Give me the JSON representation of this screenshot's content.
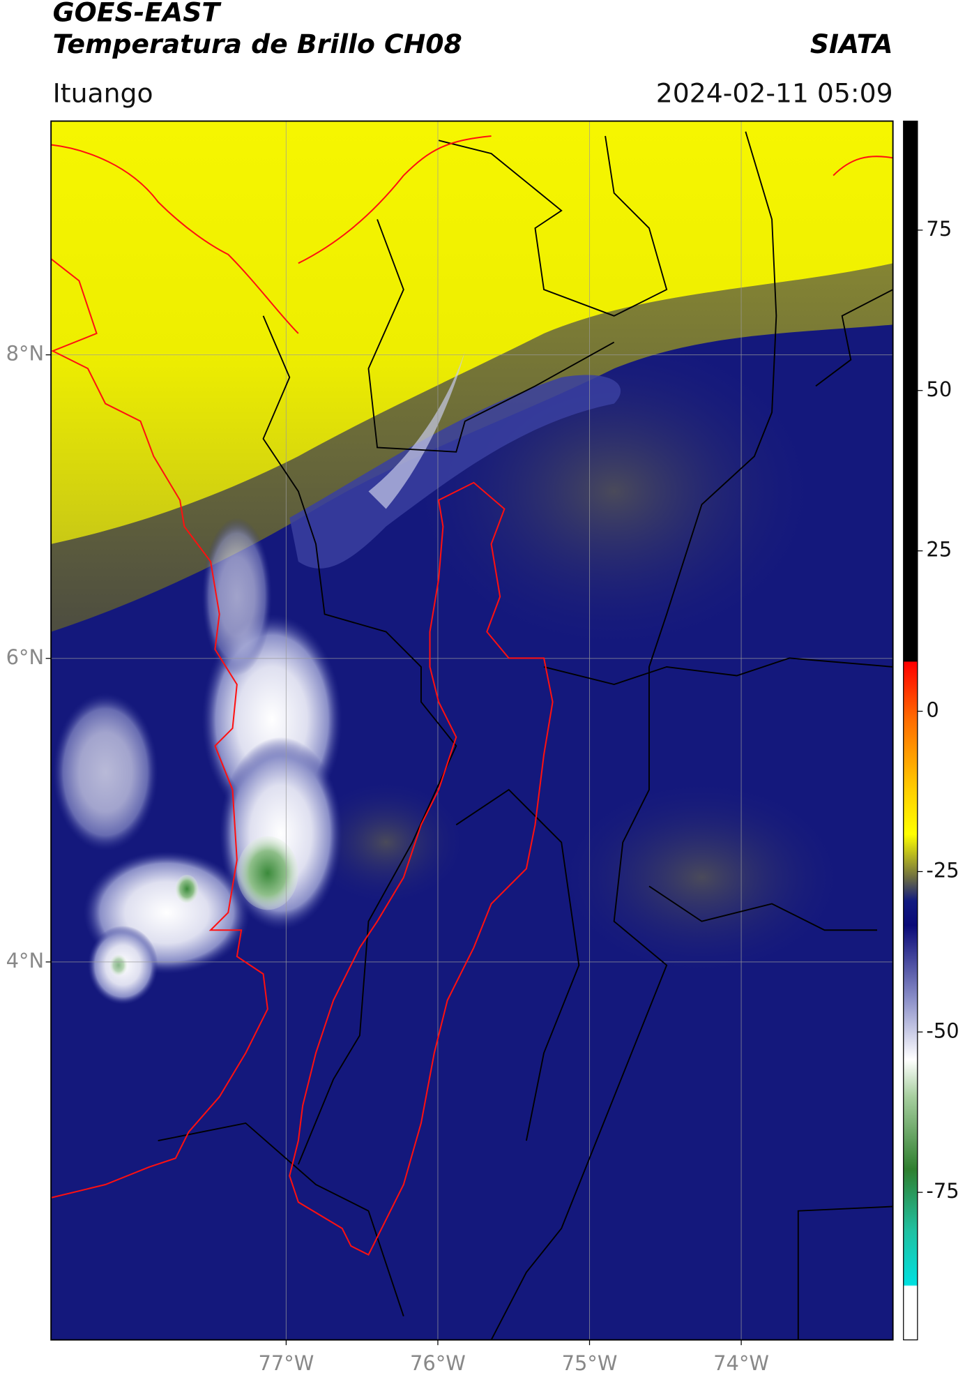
{
  "header": {
    "title": "GOES-EAST",
    "subtitle": "Temperatura de Brillo CH08",
    "source": "SIATA",
    "location": "Ituango",
    "datetime": "2024-02-11 05:09"
  },
  "map": {
    "xlim": [
      -78.55,
      -73.0
    ],
    "ylim": [
      1.51,
      9.54
    ],
    "xticks": [
      {
        "value": -77,
        "label": "77°W"
      },
      {
        "value": -76,
        "label": "76°W"
      },
      {
        "value": -75,
        "label": "75°W"
      },
      {
        "value": -74,
        "label": "74°W"
      }
    ],
    "yticks": [
      {
        "value": 4,
        "label": "4°N"
      },
      {
        "value": 6,
        "label": "6°N"
      },
      {
        "value": 8,
        "label": "8°N"
      }
    ],
    "grid": true
  },
  "colorbar": {
    "lim": [
      -98,
      92
    ],
    "ticks": [
      -75,
      -50,
      -25,
      0,
      25,
      50,
      75
    ]
  }
}
